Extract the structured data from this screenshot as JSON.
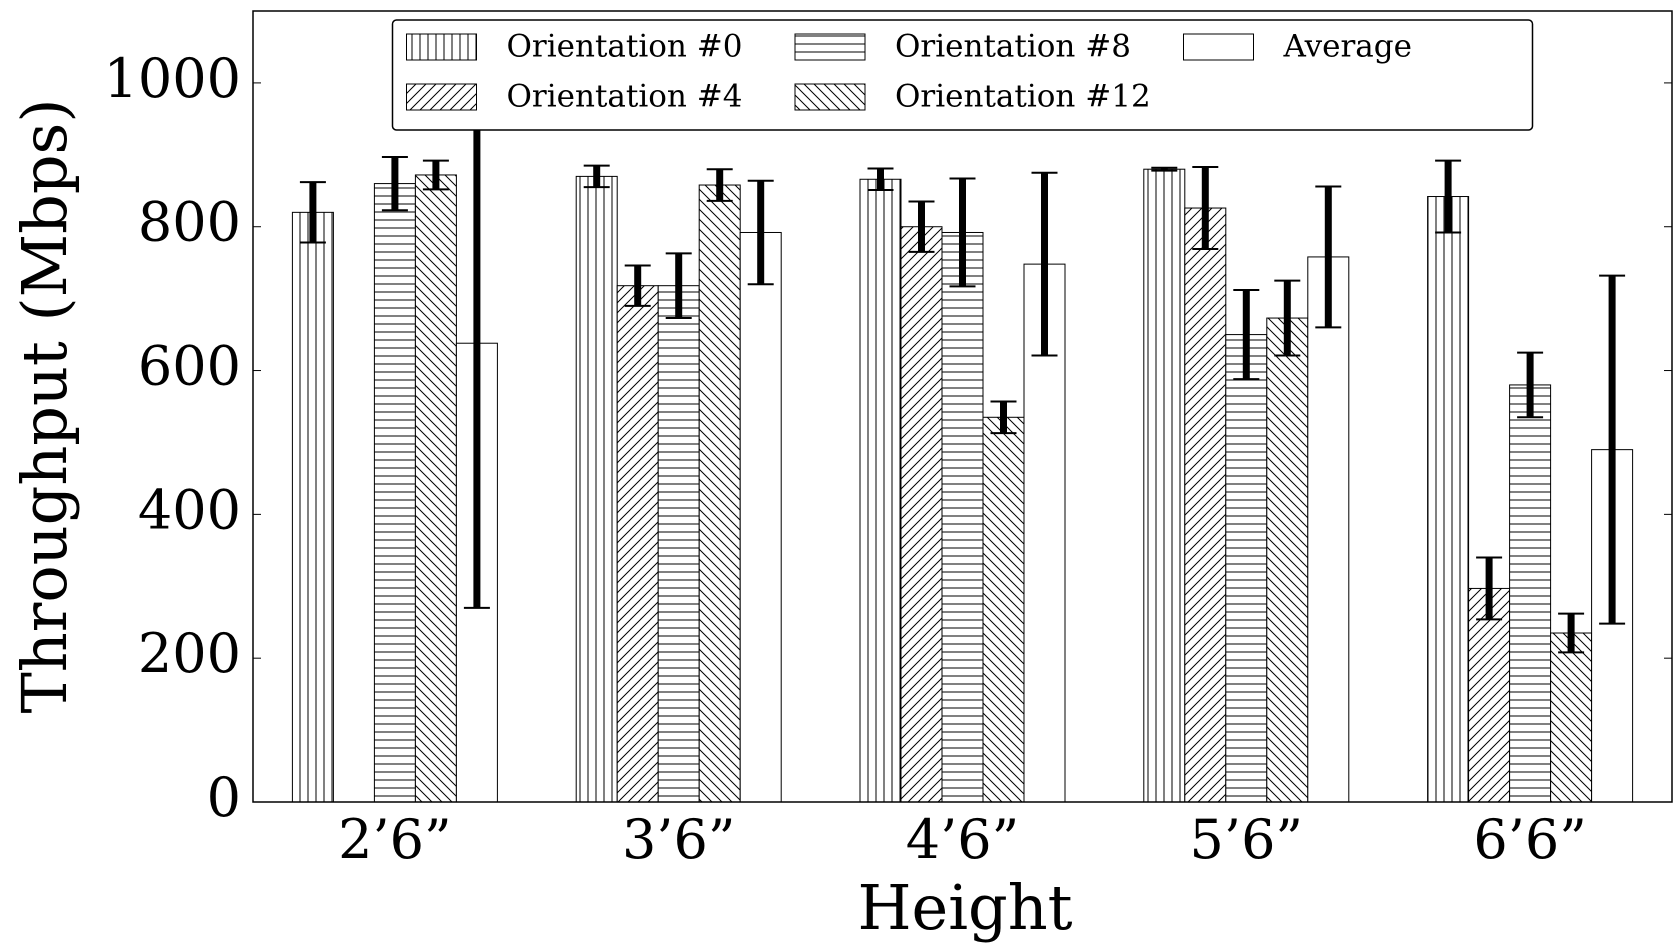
{
  "chart_data": {
    "type": "bar",
    "xlabel": "Height",
    "ylabel": "Throughput (Mbps)",
    "categories": [
      "2’6”",
      "3’6”",
      "4’6”",
      "5’6”",
      "6’6”"
    ],
    "series": [
      {
        "name": "Orientation #0",
        "color": "#000000",
        "hatch": "|",
        "values": [
          820,
          870,
          866,
          880,
          842
        ],
        "errors": [
          42,
          15,
          15,
          2,
          50
        ]
      },
      {
        "name": "Orientation #4",
        "color": "#000000",
        "hatch": "/",
        "values": [
          null,
          718,
          800,
          826,
          297
        ],
        "errors": [
          null,
          28,
          35,
          57,
          43
        ]
      },
      {
        "name": "Orientation #8",
        "color": "#000000",
        "hatch": "-",
        "values": [
          860,
          718,
          792,
          650,
          580
        ],
        "errors": [
          37,
          45,
          75,
          62,
          45
        ]
      },
      {
        "name": "Orientation #12",
        "color": "#000000",
        "hatch": "\\",
        "values": [
          872,
          858,
          535,
          673,
          235
        ],
        "errors": [
          20,
          22,
          22,
          52,
          27
        ]
      },
      {
        "name": "Average",
        "color": "#000000",
        "values": [
          638,
          792,
          748,
          758,
          490
        ],
        "errors": [
          368,
          72,
          127,
          98,
          242
        ]
      }
    ],
    "ylim": [
      0,
      1100
    ],
    "yticks": [
      0,
      200,
      400,
      600,
      800,
      1000
    ],
    "legend": "upper center",
    "legend_columns": 3
  }
}
